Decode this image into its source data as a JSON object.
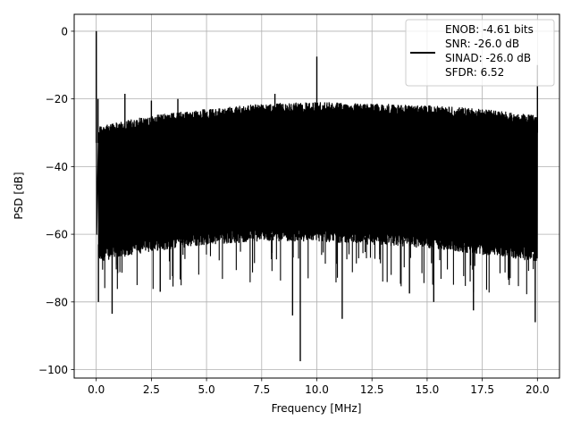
{
  "chart_data": {
    "type": "line",
    "title": "",
    "xlabel": "Frequency [MHz]",
    "ylabel": "PSD [dB]",
    "xlim": [
      -1.0,
      21.0
    ],
    "ylim": [
      -102.5,
      5.0
    ],
    "x_ticks": [
      0.0,
      2.5,
      5.0,
      7.5,
      10.0,
      12.5,
      15.0,
      17.5,
      20.0
    ],
    "x_tick_labels": [
      "0.0",
      "2.5",
      "5.0",
      "7.5",
      "10.0",
      "12.5",
      "15.0",
      "17.5",
      "20.0"
    ],
    "y_ticks": [
      0,
      -20,
      -40,
      -60,
      -80,
      -100
    ],
    "y_tick_labels": [
      "0",
      "−20",
      "−40",
      "−60",
      "−80",
      "−100"
    ],
    "grid": true,
    "legend_position": "top-right",
    "line_color": "#000000",
    "legend": {
      "lines": [
        "ENOB: -4.61 bits",
        "SNR: -26.0 dB",
        "SINAD: -26.0 dB",
        "SFDR: 6.52"
      ]
    },
    "series": [
      {
        "noise_floor_top_db": [
          [
            0.1,
            -28
          ],
          [
            2.5,
            -25
          ],
          [
            5.0,
            -23
          ],
          [
            7.5,
            -21.5
          ],
          [
            10.0,
            -21
          ],
          [
            12.5,
            -21.5
          ],
          [
            15.0,
            -22
          ],
          [
            17.5,
            -23
          ],
          [
            20.0,
            -25
          ]
        ],
        "noise_floor_bottom_db": [
          [
            0.1,
            -68
          ],
          [
            2.5,
            -65
          ],
          [
            5.0,
            -63
          ],
          [
            7.5,
            -62
          ],
          [
            10.0,
            -62
          ],
          [
            12.5,
            -63
          ],
          [
            15.0,
            -64
          ],
          [
            17.5,
            -66
          ],
          [
            20.0,
            -68
          ]
        ],
        "spikes": [
          {
            "x": 0.0,
            "y": 0.0
          },
          {
            "x": 0.08,
            "y": -20
          },
          {
            "x": 1.3,
            "y": -18.5
          },
          {
            "x": 2.5,
            "y": -20.5
          },
          {
            "x": 3.7,
            "y": -20
          },
          {
            "x": 8.1,
            "y": -18.5
          },
          {
            "x": 10.0,
            "y": -7.5
          },
          {
            "x": 20.0,
            "y": -10
          }
        ],
        "dips": [
          {
            "x": 0.1,
            "y": -80
          },
          {
            "x": 0.72,
            "y": -83.5
          },
          {
            "x": 2.9,
            "y": -77
          },
          {
            "x": 8.9,
            "y": -84
          },
          {
            "x": 9.25,
            "y": -97.5
          },
          {
            "x": 11.15,
            "y": -85
          },
          {
            "x": 14.2,
            "y": -77.5
          },
          {
            "x": 15.3,
            "y": -80
          },
          {
            "x": 17.1,
            "y": -82.5
          },
          {
            "x": 19.9,
            "y": -86
          }
        ]
      }
    ]
  }
}
